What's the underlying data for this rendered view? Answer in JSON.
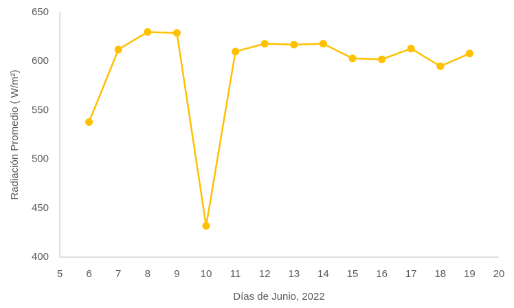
{
  "chart_data": {
    "type": "line",
    "x_label": "Días de Junio, 2022",
    "y_label": "Radiación Promedio  ( W/m²)",
    "series": [
      {
        "name": "Radiación",
        "color": "#ffc000",
        "x": [
          6,
          7,
          8,
          9,
          10,
          11,
          12,
          13,
          14,
          15,
          16,
          17,
          18,
          19
        ],
        "values": [
          538,
          612,
          630,
          629,
          432,
          610,
          618,
          617,
          618,
          603,
          602,
          613,
          595,
          608
        ]
      }
    ],
    "xlim": [
      5,
      20
    ],
    "xticks": [
      5,
      6,
      7,
      8,
      9,
      10,
      11,
      12,
      13,
      14,
      15,
      16,
      17,
      18,
      19,
      20
    ],
    "ylim": [
      400,
      650
    ],
    "yticks": [
      400,
      450,
      500,
      550,
      600,
      650
    ],
    "grid": false
  }
}
